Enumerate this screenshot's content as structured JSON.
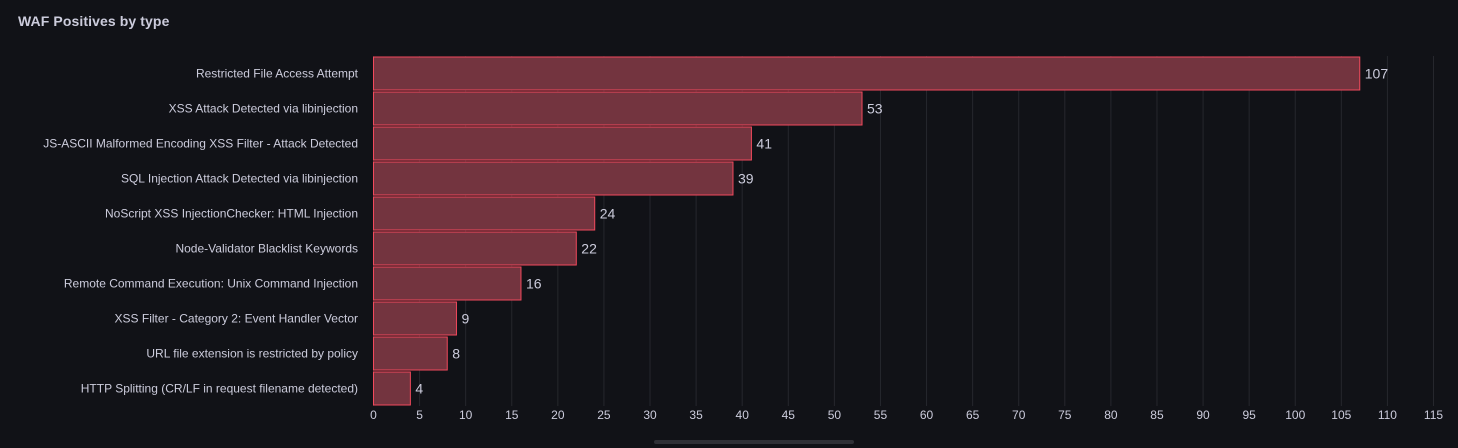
{
  "panel": {
    "title": "WAF Positives by type"
  },
  "chart_data": {
    "type": "bar",
    "orientation": "horizontal",
    "title": "WAF Positives by type",
    "categories": [
      "Restricted File Access Attempt",
      "XSS Attack Detected via libinjection",
      "JS-ASCII Malformed Encoding XSS Filter - Attack Detected",
      "SQL Injection Attack Detected via libinjection",
      "NoScript XSS InjectionChecker: HTML Injection",
      "Node-Validator Blacklist Keywords",
      "Remote Command Execution: Unix Command Injection",
      "XSS Filter - Category 2: Event Handler Vector",
      "URL file extension is restricted by policy",
      "HTTP Splitting (CR/LF in request filename detected)"
    ],
    "values": [
      107,
      53,
      41,
      39,
      24,
      22,
      16,
      9,
      8,
      4
    ],
    "xlim": [
      0,
      115
    ],
    "xticks": [
      0,
      5,
      10,
      15,
      20,
      25,
      30,
      35,
      40,
      45,
      50,
      55,
      60,
      65,
      70,
      75,
      80,
      85,
      90,
      95,
      100,
      105,
      110,
      115
    ],
    "grid": true,
    "colors": {
      "bar_fill": "#73343f",
      "bar_stroke": "#f2495c",
      "grid": "#26272d",
      "text": "#ccccdc",
      "background": "#111217"
    }
  }
}
